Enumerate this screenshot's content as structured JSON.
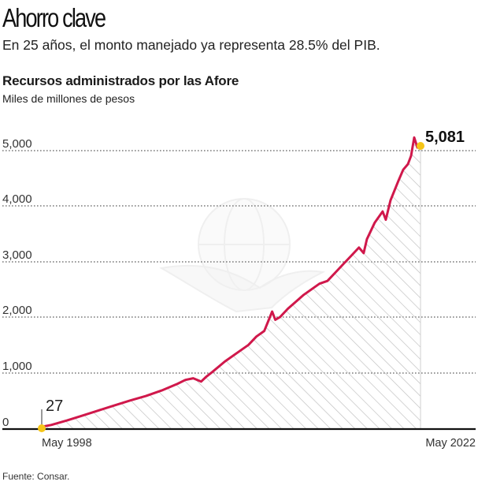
{
  "header": {
    "title": "Ahorro clave",
    "subtitle": "En 25 años, el monto manejado ya representa 28.5% del PIB.",
    "chart_title": "Recursos administrados por las Afore",
    "chart_unit": "Miles de millones de pesos"
  },
  "footer": {
    "source": "Fuente: Consar."
  },
  "colors": {
    "line": "#d0184b",
    "marker": "#f5c518",
    "hatch": "#b8b8b8",
    "grid": "#777777",
    "axis": "#111111"
  },
  "chart_data": {
    "type": "area",
    "title": "Recursos administrados por las Afore",
    "subtitle": "Miles de millones de pesos",
    "xlabel": "",
    "ylabel": "Miles de millones de pesos",
    "x_tick_labels": [
      "May 1998",
      "May 2022"
    ],
    "y_ticks": [
      0,
      1000,
      2000,
      3000,
      4000,
      5000
    ],
    "y_tick_labels": [
      "0",
      "1,000",
      "2,000",
      "3,000",
      "4,000",
      "5,000"
    ],
    "ylim": [
      0,
      5300
    ],
    "grid": true,
    "legend": "none",
    "annotations": [
      {
        "label": "27",
        "x": "May 1998",
        "y": 27
      },
      {
        "label": "5,081",
        "x": "May 2022",
        "y": 5081
      }
    ],
    "series": [
      {
        "name": "Recursos administrados",
        "x": [
          1998.4,
          1999.0,
          2000.0,
          2001.0,
          2002.0,
          2003.0,
          2004.0,
          2005.0,
          2006.0,
          2007.0,
          2007.5,
          2008.0,
          2008.5,
          2008.8,
          2009.2,
          2010.0,
          2011.0,
          2011.5,
          2012.0,
          2012.5,
          2013.0,
          2013.2,
          2013.5,
          2014.0,
          2015.0,
          2016.0,
          2016.5,
          2017.0,
          2017.5,
          2018.0,
          2018.5,
          2018.8,
          2019.0,
          2019.5,
          2020.0,
          2020.2,
          2020.5,
          2021.0,
          2021.3,
          2021.6,
          2021.8,
          2022.0,
          2022.2,
          2022.4
        ],
        "values": [
          27,
          60,
          140,
          230,
          320,
          410,
          500,
          580,
          680,
          800,
          870,
          900,
          840,
          920,
          1010,
          1200,
          1400,
          1500,
          1650,
          1750,
          2100,
          1950,
          2000,
          2150,
          2400,
          2600,
          2650,
          2800,
          2950,
          3100,
          3250,
          3150,
          3400,
          3700,
          3900,
          3750,
          4100,
          4450,
          4650,
          4750,
          4900,
          5230,
          5050,
          5081
        ]
      }
    ]
  }
}
